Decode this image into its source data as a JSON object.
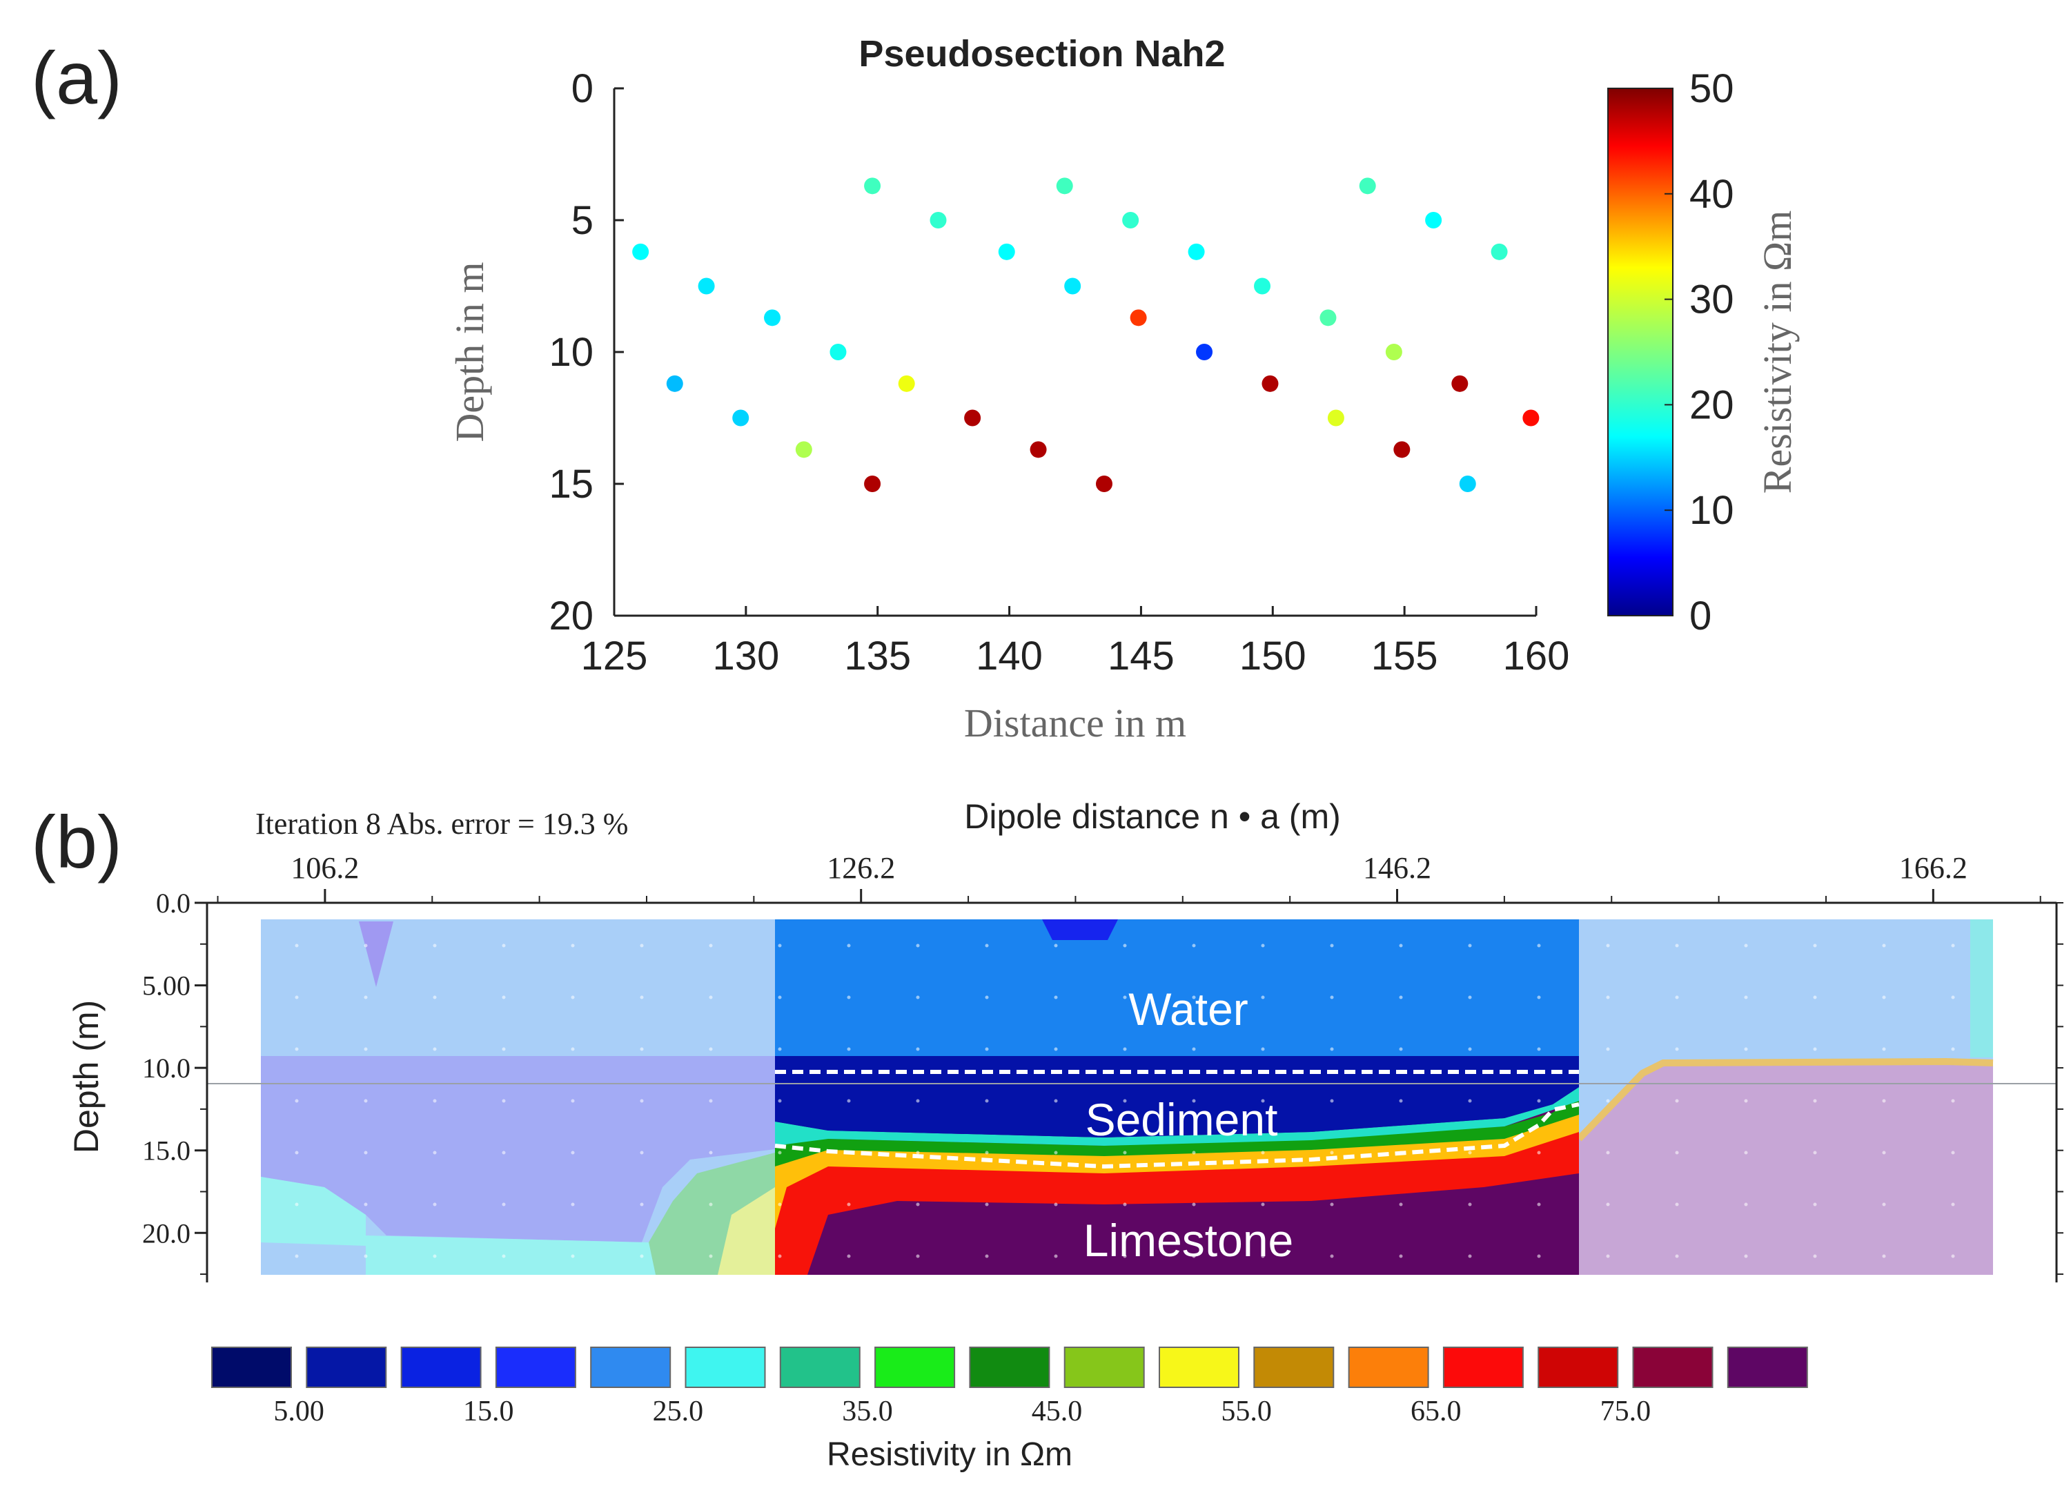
{
  "panel_labels": {
    "a": "(a)",
    "b": "(b)"
  },
  "chart_data": [
    {
      "type": "scatter",
      "title": "Pseudosection Nah2",
      "xlabel": "Distance in m",
      "ylabel": "Depth in m",
      "xlim": [
        125,
        160
      ],
      "ylim": [
        20,
        0
      ],
      "x_ticks": [
        "125",
        "130",
        "135",
        "140",
        "145",
        "150",
        "155",
        "160"
      ],
      "y_ticks": [
        "0",
        "5",
        "10",
        "15",
        "20"
      ],
      "colorbar": {
        "label": "Resistivity in Ωm",
        "range": [
          0,
          50
        ],
        "ticks": [
          "0",
          "10",
          "20",
          "30",
          "40",
          "50"
        ],
        "colormap": "jet"
      },
      "points": [
        {
          "x": 126.0,
          "y": 6.2,
          "v": 17
        },
        {
          "x": 127.3,
          "y": 11.2,
          "v": 14
        },
        {
          "x": 128.5,
          "y": 7.5,
          "v": 16
        },
        {
          "x": 129.8,
          "y": 12.5,
          "v": 15
        },
        {
          "x": 131.0,
          "y": 8.7,
          "v": 16
        },
        {
          "x": 132.2,
          "y": 13.7,
          "v": 28
        },
        {
          "x": 133.5,
          "y": 10.0,
          "v": 18
        },
        {
          "x": 134.8,
          "y": 3.7,
          "v": 21
        },
        {
          "x": 134.8,
          "y": 15.0,
          "v": 48
        },
        {
          "x": 136.1,
          "y": 11.2,
          "v": 32
        },
        {
          "x": 137.3,
          "y": 5.0,
          "v": 20
        },
        {
          "x": 138.6,
          "y": 12.5,
          "v": 48
        },
        {
          "x": 139.9,
          "y": 6.2,
          "v": 17
        },
        {
          "x": 141.1,
          "y": 13.7,
          "v": 48
        },
        {
          "x": 142.1,
          "y": 3.7,
          "v": 21
        },
        {
          "x": 142.4,
          "y": 7.5,
          "v": 16
        },
        {
          "x": 143.6,
          "y": 15.0,
          "v": 48
        },
        {
          "x": 144.6,
          "y": 5.0,
          "v": 20
        },
        {
          "x": 144.9,
          "y": 8.7,
          "v": 42
        },
        {
          "x": 147.1,
          "y": 6.2,
          "v": 17
        },
        {
          "x": 147.4,
          "y": 10.0,
          "v": 8
        },
        {
          "x": 149.6,
          "y": 7.5,
          "v": 19
        },
        {
          "x": 149.9,
          "y": 11.2,
          "v": 48
        },
        {
          "x": 152.1,
          "y": 8.7,
          "v": 22
        },
        {
          "x": 152.4,
          "y": 12.5,
          "v": 31
        },
        {
          "x": 153.6,
          "y": 3.7,
          "v": 21
        },
        {
          "x": 154.6,
          "y": 10.0,
          "v": 28
        },
        {
          "x": 154.9,
          "y": 13.7,
          "v": 48
        },
        {
          "x": 156.1,
          "y": 5.0,
          "v": 17
        },
        {
          "x": 157.1,
          "y": 11.2,
          "v": 48
        },
        {
          "x": 157.4,
          "y": 15.0,
          "v": 15
        },
        {
          "x": 158.6,
          "y": 6.2,
          "v": 20
        },
        {
          "x": 159.8,
          "y": 12.5,
          "v": 44
        }
      ]
    },
    {
      "type": "heatmap",
      "top_left_label": "Iteration 8 Abs. error = 19.3 %",
      "title": "Dipole distance n • a  (m)",
      "ylabel": "Depth (m)",
      "xlim": [
        101.8,
        170.8
      ],
      "ylim": [
        23.0,
        0
      ],
      "x_ticks": [
        "106.2",
        "126.2",
        "146.2",
        "166.2"
      ],
      "y_ticks": [
        "0.0",
        "5.00",
        "10.0",
        "15.0",
        "20.0"
      ],
      "annotations": [
        "Water",
        "Sediment",
        "Limestone"
      ],
      "colorbar": {
        "label": "Resistivity in Ωm",
        "ticks": [
          "5.00",
          "15.0",
          "25.0",
          "35.0",
          "45.0",
          "55.0",
          "65.0",
          "75.0"
        ],
        "swatches": [
          "#000b6a",
          "#0517a6",
          "#0a22e2",
          "#1a2dfc",
          "#2f8af0",
          "#3ff5f0",
          "#22c28a",
          "#19ec19",
          "#118b11",
          "#86c61a",
          "#f7f719",
          "#c38a05",
          "#fc7f0a",
          "#fc0a0a",
          "#cf0505",
          "#8a0338",
          "#5e0664"
        ]
      }
    }
  ]
}
